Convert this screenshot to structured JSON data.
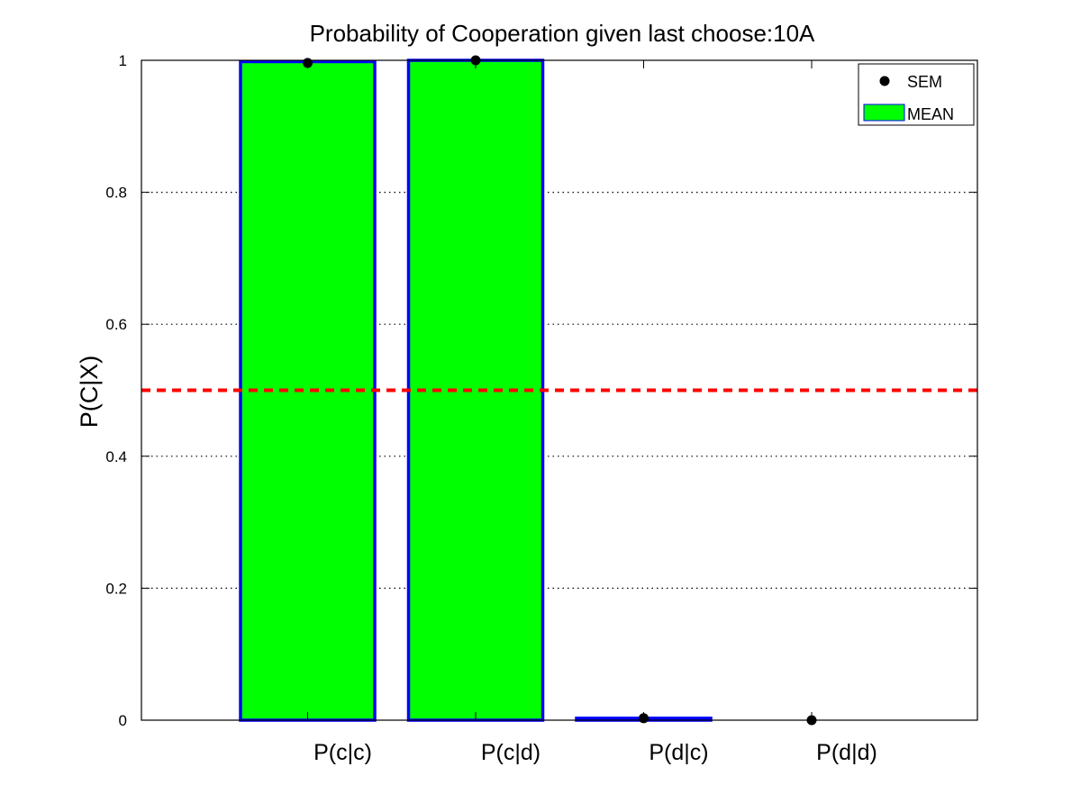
{
  "chart_data": {
    "type": "bar",
    "title": "Probability of Cooperation given last choose:10A",
    "xlabel": "",
    "ylabel": "P(C|X)",
    "categories": [
      "P(c|c)",
      "P(c|d)",
      "P(d|c)",
      "P(d|d)"
    ],
    "series": [
      {
        "name": "MEAN",
        "values": [
          0.998,
          1.0,
          0.003,
          0.0
        ]
      },
      {
        "name": "SEM",
        "values": [
          0.996,
          1.0,
          0.003,
          0.0
        ]
      }
    ],
    "ylim": [
      0,
      1
    ],
    "yticks": [
      "0",
      "0.2",
      "0.4",
      "0.6",
      "0.8",
      "1"
    ],
    "reference_line": {
      "value": 0.5,
      "color": "#ff0000",
      "style": "dashed"
    },
    "grid": "y-dotted",
    "legend_position": "top-right",
    "colors": {
      "bar_fill": "#00ff00",
      "bar_edge": "#0000ff",
      "marker": "#000000"
    }
  }
}
